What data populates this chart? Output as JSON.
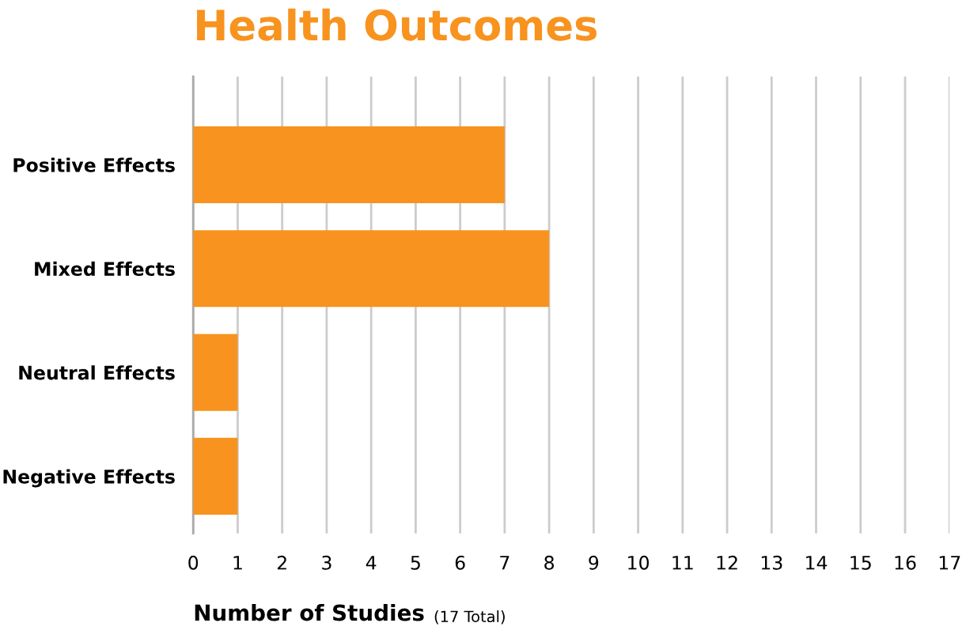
{
  "chart_data": {
    "type": "bar",
    "orientation": "horizontal",
    "title": "Health Outcomes",
    "categories": [
      "Positive Effects",
      "Mixed Effects",
      "Neutral Effects",
      "Negative Effects"
    ],
    "values": [
      7,
      8,
      1,
      1
    ],
    "color": "#f7931e",
    "xlim": [
      0,
      17
    ],
    "xticks": [
      0,
      1,
      2,
      3,
      4,
      5,
      6,
      7,
      8,
      9,
      10,
      11,
      12,
      13,
      14,
      15,
      16,
      17
    ],
    "xlabel": "Number of Studies",
    "annotations": [
      "(17 Total)"
    ],
    "grid": "x"
  }
}
